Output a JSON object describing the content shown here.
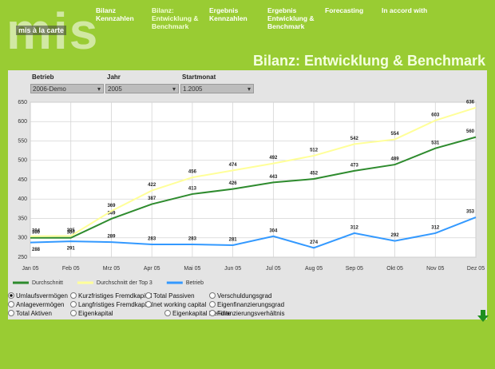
{
  "header": {
    "logo_big": "mis",
    "logo_small": "mis à la carte",
    "nav": [
      "Bilanz Kennzahlen",
      "Bilanz: Entwicklung & Benchmark",
      "Ergebnis Kennzahlen",
      "Ergebnis Entwicklung & Benchmark",
      "Forecasting",
      "In accord with"
    ]
  },
  "page_title": "Bilanz: Entwicklung & Benchmark",
  "filters": [
    {
      "label": "Betrieb",
      "value": "2006-Demo"
    },
    {
      "label": "Jahr",
      "value": "2005"
    },
    {
      "label": "Startmonat",
      "value": "1.2005"
    }
  ],
  "chart_data": {
    "type": "line",
    "categories": [
      "Jan 05",
      "Feb 05",
      "Mrz 05",
      "Apr 05",
      "Mai 05",
      "Jun 05",
      "Jul 05",
      "Aug 05",
      "Sep 05",
      "Okt 05",
      "Nov 05",
      "Dez 05"
    ],
    "series": [
      {
        "name": "Durchschnitt",
        "color": "#2e8b2e",
        "values": [
          300,
          300,
          349,
          387,
          413,
          426,
          443,
          452,
          473,
          489,
          531,
          560
        ]
      },
      {
        "name": "Durchschnitt der Top 3",
        "color": "#ffff99",
        "values": [
          304,
          305,
          369,
          422,
          456,
          474,
          492,
          512,
          542,
          554,
          603,
          636
        ]
      },
      {
        "name": "Betrieb",
        "color": "#3399ff",
        "values": [
          288,
          291,
          289,
          283,
          283,
          281,
          304,
          274,
          312,
          292,
          312,
          353
        ]
      }
    ],
    "ylim": [
      250,
      650
    ],
    "yticks": [
      250,
      300,
      350,
      400,
      450,
      500,
      550,
      600,
      650
    ],
    "grid": true,
    "legend": "bottom"
  },
  "options": [
    [
      {
        "label": "Umlaufsvermögen",
        "selected": true
      },
      {
        "label": "Kurzfristiges Fremdkapital",
        "selected": false
      },
      {
        "label": "Total Passiven",
        "selected": false
      },
      {
        "label": "Verschuldungsgrad",
        "selected": false
      }
    ],
    [
      {
        "label": "Anlagevermögen",
        "selected": false
      },
      {
        "label": "Langfristiges Fremdkapital",
        "selected": false
      },
      {
        "label": "net working capital",
        "selected": false
      },
      {
        "label": "Eigenfinanzierungsgrad",
        "selected": false
      }
    ],
    [
      {
        "label": "Total Aktiven",
        "selected": false
      },
      {
        "label": "Eigenkapital",
        "selected": false
      },
      {
        "label": "Eigenkapital Rendite",
        "selected": false
      },
      {
        "label": "Finanzierungsverhältnis",
        "selected": false
      }
    ]
  ]
}
